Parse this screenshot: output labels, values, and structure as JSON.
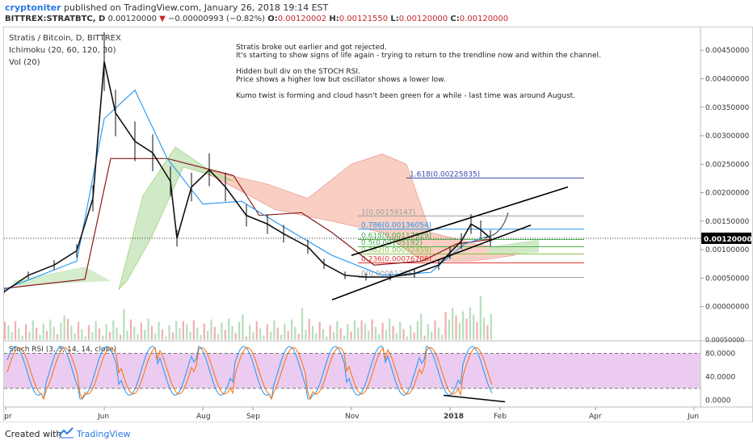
{
  "header": {
    "author": "cryptoniter",
    "published": " published on TradingView.com, January 26, 2018 19:14 EST",
    "symbol": "BITTREX:STRATBTC, D",
    "last": "0.00120000",
    "change_arrow": "▼",
    "change": "−0.00000993 (−0.82%)",
    "o_label": "O:",
    "o": "0.00120002",
    "h_label": "H:",
    "h": "0.00121550",
    "l_label": "L:",
    "l": "0.00120000",
    "c_label": "C:",
    "c": "0.00120000"
  },
  "legend": {
    "title": "Stratis / Bitcoin, D, BITTREX",
    "ichimoku": "Ichimoku (20, 60, 120, 30)",
    "vol": "Vol (20)"
  },
  "notes": [
    "Stratis broke out earlier and got rejected.",
    "It's starting to show signs of life again - trying to return to the trendline now and within the channel.",
    "",
    "Hidden bull div on the STOCH RSI.",
    "Price shows a higher low but oscillator shows a lower low.",
    "",
    "Kumo twist is forming and cloud hasn't been green for a while - last time was around August."
  ],
  "footer": {
    "created": "Created with",
    "brand": "TradingView"
  },
  "colors": {
    "up": "#000000",
    "cloud_red": "#f7c7b8",
    "cloud_green": "#cbe7c0",
    "tenkan": "#2196f3",
    "kijun": "#8b1a1a",
    "fib_top": "#3949ab",
    "stoch_bg": "#e3b7ea",
    "stoch_k": "#2196f3",
    "stoch_d": "#ff6d00"
  },
  "chart_data": {
    "type": "line",
    "title": "Stratis / Bitcoin, D, BITTREX",
    "price_axis": {
      "ticks": [
        "0.00450000",
        "0.00400000",
        "0.00350000",
        "0.00300000",
        "0.00250000",
        "0.00200000",
        "0.00150000",
        "0.00100000",
        "0.00050000",
        "0.00000000"
      ],
      "tick_values": [
        0.0045,
        0.004,
        0.0035,
        0.003,
        0.0025,
        0.002,
        0.0015,
        0.001,
        0.0005,
        0.0
      ],
      "ylim": [
        -0.0006,
        0.0049
      ],
      "current_label": "0.00120000",
      "current_value": 0.0012,
      "volume_tick": "0.00050000"
    },
    "x_axis": {
      "labels": [
        "Apr",
        "Jun",
        "Aug",
        "Sep",
        "Nov",
        "2018",
        "Feb",
        "Apr",
        "Jun"
      ],
      "dates": [
        "2017-04-01",
        "2017-06-01",
        "2017-08-01",
        "2017-09-01",
        "2017-11-01",
        "2018-01-01",
        "2018-02-01",
        "2018-04-01",
        "2018-06-01"
      ],
      "range": [
        "2017-03-31",
        "2018-06-05"
      ]
    },
    "price": {
      "x": [
        "2017-03-31",
        "2017-04-15",
        "2017-05-01",
        "2017-05-15",
        "2017-05-25",
        "2017-06-01",
        "2017-06-08",
        "2017-06-20",
        "2017-07-01",
        "2017-07-12",
        "2017-07-16",
        "2017-07-25",
        "2017-08-05",
        "2017-08-15",
        "2017-08-28",
        "2017-09-10",
        "2017-09-20",
        "2017-10-05",
        "2017-10-15",
        "2017-10-28",
        "2017-11-10",
        "2017-11-25",
        "2017-12-10",
        "2017-12-25",
        "2018-01-01",
        "2018-01-08",
        "2018-01-14",
        "2018-01-20",
        "2018-01-26"
      ],
      "y": [
        0.00026,
        0.00055,
        0.00073,
        0.00098,
        0.0019,
        0.0043,
        0.0034,
        0.0029,
        0.0027,
        0.0022,
        0.0012,
        0.0021,
        0.0024,
        0.0021,
        0.0016,
        0.00145,
        0.00128,
        0.00105,
        0.00075,
        0.00055,
        0.00052,
        0.00052,
        0.00058,
        0.00073,
        0.00095,
        0.00115,
        0.00145,
        0.00135,
        0.0012
      ]
    },
    "tenkan": {
      "x": [
        "2017-03-31",
        "2017-05-15",
        "2017-06-01",
        "2017-06-20",
        "2017-07-10",
        "2017-08-01",
        "2017-08-25",
        "2017-09-20",
        "2017-10-20",
        "2017-11-20",
        "2017-12-20",
        "2018-01-10",
        "2018-01-26"
      ],
      "y": [
        0.0003,
        0.0008,
        0.0033,
        0.0038,
        0.0026,
        0.0018,
        0.00185,
        0.0014,
        0.0009,
        0.00055,
        0.0006,
        0.0011,
        0.00125
      ]
    },
    "kijun": {
      "x": [
        "2017-03-31",
        "2017-05-20",
        "2017-06-05",
        "2017-07-10",
        "2017-08-20",
        "2017-09-05",
        "2017-10-01",
        "2017-10-20",
        "2017-11-15",
        "2017-12-15",
        "2018-01-05",
        "2018-01-26"
      ],
      "y": [
        0.00032,
        0.00048,
        0.0026,
        0.0026,
        0.0023,
        0.0016,
        0.00165,
        0.0013,
        0.00073,
        0.0008,
        0.0011,
        0.00118
      ]
    },
    "fibonacci": [
      {
        "label": "1.618(0.00225835)",
        "value": 0.00225835
      },
      {
        "label": "1(0.00159147)",
        "value": 0.00159147
      },
      {
        "label": "0.786(0.00136054)",
        "value": 0.00136054
      },
      {
        "label": "0.618(0.00117929)",
        "value": 0.00117929
      },
      {
        "label": "0.5(0.00105192)",
        "value": 0.00105192
      },
      {
        "label": "0.382(0.00092459)",
        "value": 0.00092459
      },
      {
        "label": "0.236(0.00076706)",
        "value": 0.00076706
      },
      {
        "label": "0(0.00051225)",
        "value": 0.00051225
      }
    ],
    "stoch_rsi": {
      "name": "Stoch RSI (3, 3, 14, 14, close)",
      "ticks": [
        "80.0000",
        "40.0000",
        "0.0000"
      ],
      "tick_values": [
        80,
        40,
        0
      ],
      "ylim": [
        -12,
        100
      ],
      "bands": [
        80,
        20
      ]
    }
  }
}
